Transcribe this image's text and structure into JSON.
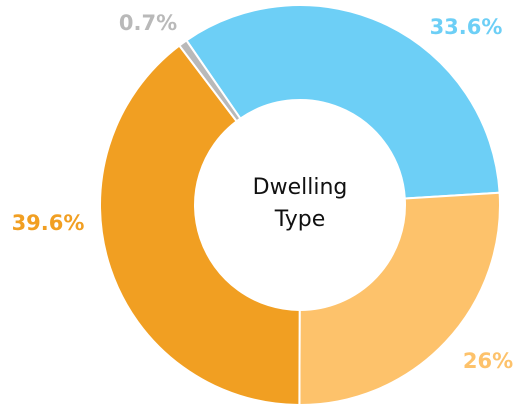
{
  "chart_data": {
    "type": "donut",
    "center_label": [
      "Dwelling",
      "Type"
    ],
    "values": [
      33.6,
      26,
      39.6,
      0.7
    ],
    "value_labels": [
      "33.6%",
      "26%",
      "39.6%",
      "0.7%"
    ],
    "colors": [
      "#6dcff6",
      "#fdc26b",
      "#f19f22",
      "#b9b9b9"
    ]
  }
}
